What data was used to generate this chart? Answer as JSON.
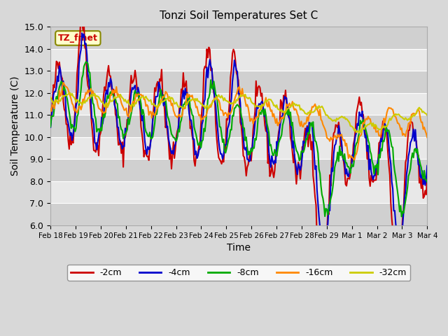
{
  "title": "Tonzi Soil Temperatures Set C",
  "xlabel": "Time",
  "ylabel": "Soil Temperature (C)",
  "ylim": [
    6.0,
    15.0
  ],
  "yticks": [
    6.0,
    7.0,
    8.0,
    9.0,
    10.0,
    11.0,
    12.0,
    13.0,
    14.0,
    15.0
  ],
  "xtick_labels": [
    "Feb 18",
    "Feb 19",
    "Feb 20",
    "Feb 21",
    "Feb 22",
    "Feb 23",
    "Feb 24",
    "Feb 25",
    "Feb 26",
    "Feb 27",
    "Feb 28",
    "Feb 29",
    "Mar 1",
    "Mar 2",
    "Mar 3",
    "Mar 4"
  ],
  "series_labels": [
    "-2cm",
    "-4cm",
    "-8cm",
    "-16cm",
    "-32cm"
  ],
  "series_colors": [
    "#cc0000",
    "#0000cc",
    "#00aa00",
    "#ff8800",
    "#cccc00"
  ],
  "legend_label": "TZ_fmet",
  "legend_bg": "#ffffcc",
  "legend_edge": "#888800",
  "legend_text_color": "#cc0000",
  "linewidth": 1.5
}
